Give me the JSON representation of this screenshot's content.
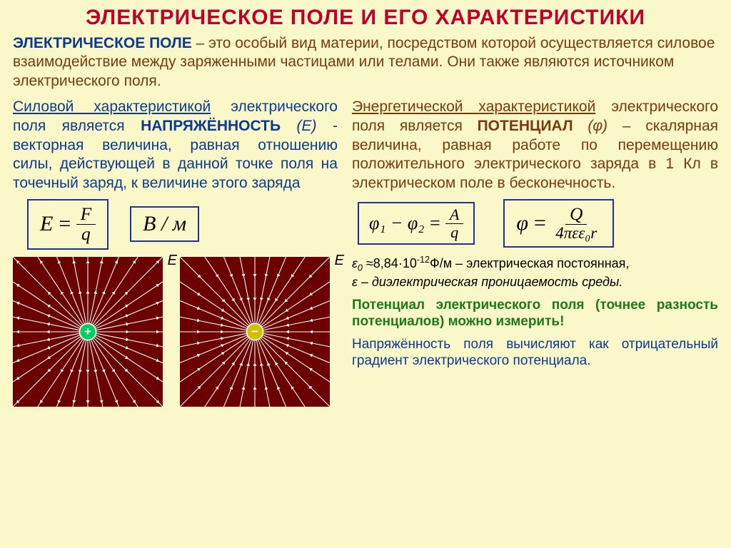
{
  "colors": {
    "page_bg": "#faf7c8",
    "title": "#c00020",
    "intro_lead": "#0b3a8f",
    "intro_body": "#7a3a0c",
    "left_text": "#0b3a8f",
    "right_text": "#7a3a0c",
    "formula_border": "#2030a0",
    "green": "#1a7a1a",
    "diagram_bg": "#6b0000",
    "diagram_line": "#ffffff",
    "pos_core": "#00d060",
    "neg_core": "#d0c000"
  },
  "title": "ЭЛЕКТРИЧЕСКОЕ ПОЛЕ И ЕГО ХАРАКТЕРИСТИКИ",
  "intro": {
    "lead": "ЭЛЕКТРИЧЕСКОЕ ПОЛЕ",
    "body": " – это особый вид материи, посредством которой осуществляется силовое взаимодействие между заряженными частицами или телами. Они также являются источником электрического поля."
  },
  "left": {
    "p1_underlined": "Силовой характеристикой",
    "p1_rest": " электрического поля является ",
    "p1_kw": "НАПРЯЖЁННОСТЬ",
    "p1_sym": " (E) ",
    "p1_tail": "- векторная величина, равная отношению силы, действующей в данной точке поля на точечный заряд, к величине этого заряда",
    "formula1": {
      "lhs": "E",
      "num": "F",
      "den": "q"
    },
    "formula2": "B / м",
    "diagram_outward": {
      "label": "E",
      "sign": "+",
      "arrows_out": true,
      "spokes": 32
    },
    "diagram_inward": {
      "label": "E",
      "sign": "−",
      "arrows_out": false,
      "spokes": 32
    }
  },
  "right": {
    "p1_underlined": "Энергетической характеристикой",
    "p1_rest": " электрического поля является ",
    "p1_kw": "ПОТЕНЦИАЛ",
    "p1_sym": " (φ) ",
    "p1_tail": "– скалярная величина, равная работе по перемещению положительного электрического заряда в 1 Кл в электрическом поле  в бесконечность.",
    "formula3": {
      "lhs": "φ₁ − φ₂",
      "num": "A",
      "den": "q"
    },
    "formula4": {
      "lhs": "φ",
      "num": "Q",
      "den": "4πεε₀r"
    },
    "constants_line1_pre": "ε",
    "constants_line1_sub": "0",
    "constants_line1_mid": " ≈8,84·10",
    "constants_line1_sup": "-12",
    "constants_line1_post": "Ф/м – электрическая постоянная,",
    "constants_line2": "ε – диэлектрическая проницаемость среды.",
    "green_para": "Потенциал электрического поля (точнее разность потенциалов) можно измерить!",
    "blue_para": "Напряжённость поля вычисляют как отрицательный градиент электрического потенциала."
  }
}
